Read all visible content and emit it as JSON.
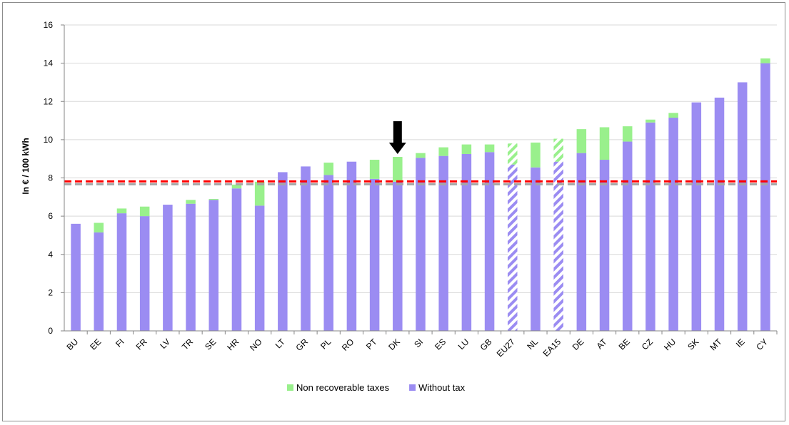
{
  "chart_data": {
    "type": "bar",
    "stacked": true,
    "title": "",
    "xlabel": "",
    "ylabel": "In € / 100 kWh",
    "ylim": [
      0,
      16
    ],
    "yticks": [
      0,
      2,
      4,
      6,
      8,
      10,
      12,
      14,
      16
    ],
    "grid": "horizontal",
    "legend_position": "bottom",
    "categories": [
      "BU",
      "EE",
      "FI",
      "FR",
      "LV",
      "TR",
      "SE",
      "HR",
      "NO",
      "LT",
      "GR",
      "PL",
      "RO",
      "PT",
      "DK",
      "SI",
      "ES",
      "LU",
      "GB",
      "EU27",
      "NL",
      "EA15",
      "DE",
      "AT",
      "BE",
      "CZ",
      "HU",
      "SK",
      "MT",
      "IE",
      "CY"
    ],
    "hatched_categories": [
      "EU27",
      "EA15"
    ],
    "highlighted_category": "DK",
    "reference_line": {
      "value": 7.78
    },
    "series": [
      {
        "name": "Without tax",
        "color": "#9b8cf2",
        "values": [
          5.6,
          5.15,
          6.15,
          6.0,
          6.6,
          6.65,
          6.85,
          7.45,
          6.55,
          8.3,
          8.6,
          8.15,
          8.85,
          7.95,
          7.8,
          9.05,
          9.15,
          9.25,
          9.35,
          8.7,
          8.55,
          8.85,
          9.3,
          8.95,
          9.9,
          10.9,
          11.15,
          11.95,
          12.2,
          13.0,
          14.0
        ]
      },
      {
        "name": "Non recoverable taxes",
        "color": "#99f08c",
        "values": [
          0.0,
          0.5,
          0.25,
          0.5,
          0.0,
          0.2,
          0.05,
          0.2,
          1.25,
          0.0,
          0.0,
          0.65,
          0.0,
          1.0,
          1.3,
          0.25,
          0.45,
          0.5,
          0.4,
          1.1,
          1.3,
          1.2,
          1.25,
          1.7,
          0.8,
          0.15,
          0.25,
          0.0,
          0.0,
          0.0,
          0.25
        ]
      }
    ],
    "legend_order": [
      "Non recoverable taxes",
      "Without tax"
    ]
  }
}
